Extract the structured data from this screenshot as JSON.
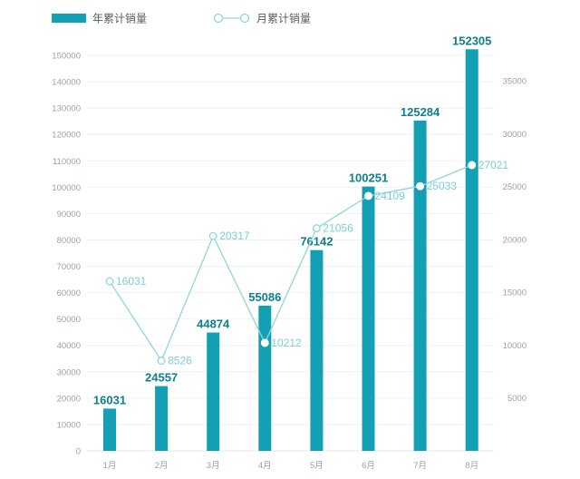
{
  "chart_data": {
    "type": "bar+line",
    "categories": [
      "1月",
      "2月",
      "3月",
      "4月",
      "5月",
      "6月",
      "7月",
      "8月"
    ],
    "series": [
      {
        "name": "年累计销量",
        "type": "bar",
        "axis": "left",
        "values": [
          16031,
          24557,
          44874,
          55086,
          76142,
          100251,
          125284,
          152305
        ]
      },
      {
        "name": "月累计销量",
        "type": "line",
        "axis": "right",
        "values": [
          16031,
          8526,
          20317,
          10212,
          21056,
          24109,
          25033,
          27021
        ]
      }
    ],
    "y_left": {
      "min": 0,
      "max": 150000,
      "step": 10000,
      "ticks": [
        "0",
        "10000",
        "20000",
        "30000",
        "40000",
        "50000",
        "60000",
        "70000",
        "80000",
        "90000",
        "100000",
        "110000",
        "120000",
        "130000",
        "140000",
        "150000"
      ]
    },
    "y_right": {
      "min": 0,
      "max": 35000,
      "step": 5000,
      "ticks": [
        "5000",
        "10000",
        "15000",
        "20000",
        "25000",
        "30000",
        "35000"
      ]
    },
    "legend_position": "top-left",
    "grid": true,
    "colors": {
      "bar": "#14a0b4",
      "bar_label": "#0f7f8c",
      "line": "#8fd6dc",
      "line_label": "#7ccfd6",
      "tick": "#9aa3a6",
      "grid": "#eef2f3"
    }
  }
}
